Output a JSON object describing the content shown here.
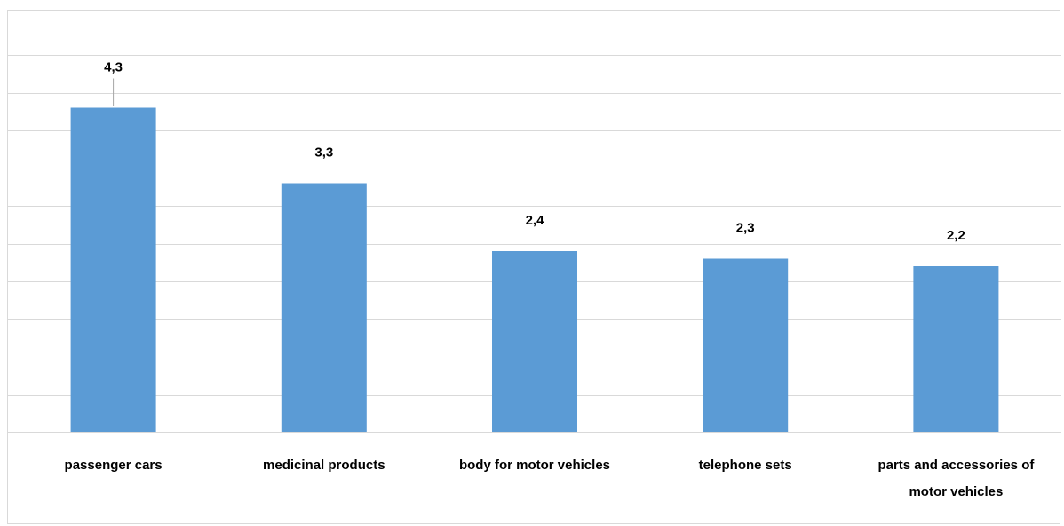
{
  "chart_data": {
    "type": "bar",
    "title": "",
    "xlabel": "",
    "ylabel": "",
    "categories": [
      "passenger cars",
      "medicinal products",
      "body for motor vehicles",
      "telephone sets",
      "parts and accessories of motor vehicles"
    ],
    "category_lines": [
      [
        "passenger cars"
      ],
      [
        "medicinal products"
      ],
      [
        "body for motor vehicles"
      ],
      [
        "telephone sets"
      ],
      [
        "parts and accessories of",
        "motor vehicles"
      ]
    ],
    "values": [
      4.3,
      3.3,
      2.4,
      2.3,
      2.2
    ],
    "data_labels": [
      "4,3",
      "3,3",
      "2,4",
      "2,3",
      "2,2"
    ],
    "ylim": [
      0,
      5
    ],
    "grid": true,
    "legend": "none",
    "bar_color": "#5b9bd5",
    "grid_color": "#d9d9d9"
  }
}
